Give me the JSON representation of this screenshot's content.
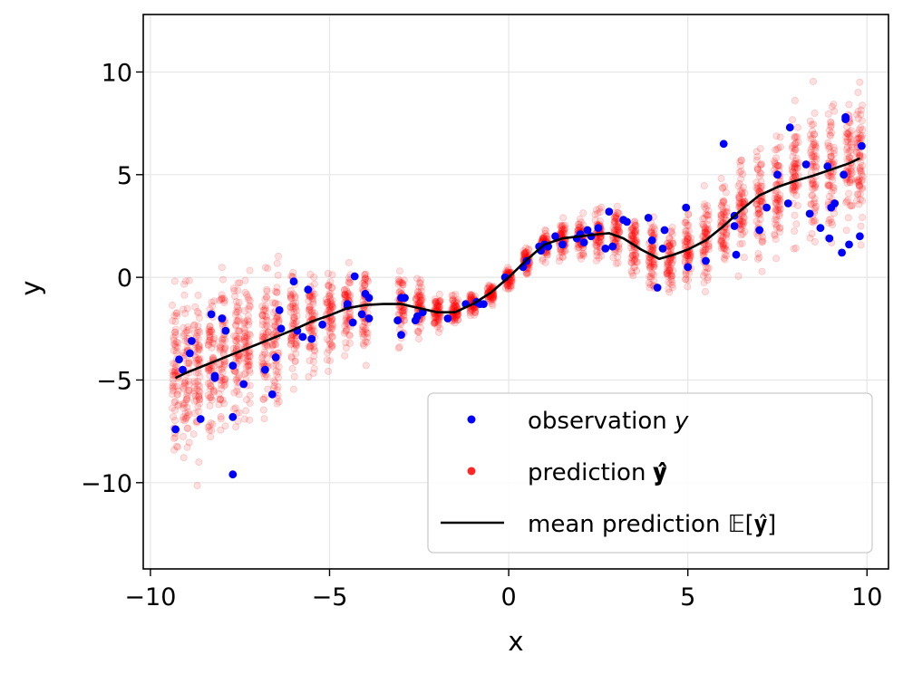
{
  "chart_data": {
    "type": "scatter",
    "title": "",
    "xlabel": "x",
    "ylabel": "y",
    "xlim": [
      -10.2,
      10.6
    ],
    "ylim": [
      -14.2,
      12.8
    ],
    "xticks": [
      -10,
      -5,
      0,
      5,
      10
    ],
    "yticks": [
      -10,
      -5,
      0,
      5,
      10
    ],
    "xtick_labels": [
      "−10",
      "−5",
      "0",
      "5",
      "10"
    ],
    "ytick_labels": [
      "−10",
      "−5",
      "0",
      "5",
      "10"
    ],
    "grid": true,
    "legend_position": "lower-right",
    "colors": {
      "observation": "#0000ff",
      "prediction": "#ff0000",
      "mean": "#000000"
    },
    "series": [
      {
        "name": "observation",
        "label": "observation y",
        "kind": "scatter",
        "points": [
          [
            -9.3,
            -7.4
          ],
          [
            -9.2,
            -4.0
          ],
          [
            -9.1,
            -4.5
          ],
          [
            -8.9,
            -3.7
          ],
          [
            -8.85,
            -3.1
          ],
          [
            -8.6,
            -6.9
          ],
          [
            -8.3,
            -1.8
          ],
          [
            -8.2,
            -4.8
          ],
          [
            -8.2,
            -4.9
          ],
          [
            -8.0,
            -2.0
          ],
          [
            -7.9,
            -2.6
          ],
          [
            -7.7,
            -9.6
          ],
          [
            -7.7,
            -6.8
          ],
          [
            -7.7,
            -4.3
          ],
          [
            -7.4,
            -5.2
          ],
          [
            -6.8,
            -4.5
          ],
          [
            -6.6,
            -5.7
          ],
          [
            -6.5,
            -3.9
          ],
          [
            -6.4,
            -1.6
          ],
          [
            -6.35,
            -2.5
          ],
          [
            -6.0,
            -0.2
          ],
          [
            -5.9,
            -2.6
          ],
          [
            -5.75,
            -2.9
          ],
          [
            -5.6,
            -0.6
          ],
          [
            -5.5,
            -3.0
          ],
          [
            -5.2,
            -2.3
          ],
          [
            -4.5,
            -1.3
          ],
          [
            -4.5,
            -1.4
          ],
          [
            -4.35,
            -2.2
          ],
          [
            -4.3,
            0.05
          ],
          [
            -4.1,
            -1.8
          ],
          [
            -4.0,
            -0.8
          ],
          [
            -3.9,
            -2.0
          ],
          [
            -3.9,
            -1.0
          ],
          [
            -3.1,
            -2.1
          ],
          [
            -3.0,
            -2.8
          ],
          [
            -3.0,
            -1.0
          ],
          [
            -2.9,
            -1.0
          ],
          [
            -2.6,
            -2.1
          ],
          [
            -2.55,
            -1.9
          ],
          [
            -2.4,
            -1.7
          ],
          [
            -1.7,
            -2.0
          ],
          [
            -1.2,
            -1.3
          ],
          [
            -0.9,
            -1.2
          ],
          [
            -0.8,
            -1.3
          ],
          [
            -0.7,
            -1.3
          ],
          [
            -0.1,
            0.0
          ],
          [
            0.4,
            0.5
          ],
          [
            0.5,
            0.8
          ],
          [
            0.85,
            1.5
          ],
          [
            0.9,
            1.3
          ],
          [
            1.0,
            1.6
          ],
          [
            1.1,
            1.5
          ],
          [
            1.3,
            2.0
          ],
          [
            1.5,
            1.6
          ],
          [
            1.9,
            1.9
          ],
          [
            2.0,
            2.1
          ],
          [
            2.1,
            1.7
          ],
          [
            2.2,
            2.3
          ],
          [
            2.3,
            2.0
          ],
          [
            2.5,
            2.4
          ],
          [
            2.7,
            1.4
          ],
          [
            2.8,
            3.2
          ],
          [
            2.9,
            1.5
          ],
          [
            3.2,
            2.8
          ],
          [
            3.3,
            2.7
          ],
          [
            3.9,
            2.9
          ],
          [
            4.0,
            1.8
          ],
          [
            4.15,
            -0.5
          ],
          [
            4.3,
            1.4
          ],
          [
            4.35,
            2.3
          ],
          [
            4.95,
            3.4
          ],
          [
            5.0,
            0.5
          ],
          [
            5.5,
            0.8
          ],
          [
            6.0,
            6.5
          ],
          [
            6.3,
            3.0
          ],
          [
            6.3,
            2.5
          ],
          [
            6.35,
            1.1
          ],
          [
            7.0,
            2.3
          ],
          [
            7.2,
            3.4
          ],
          [
            7.5,
            5.0
          ],
          [
            7.8,
            3.6
          ],
          [
            7.85,
            7.3
          ],
          [
            8.3,
            5.5
          ],
          [
            8.4,
            3.1
          ],
          [
            8.7,
            2.4
          ],
          [
            8.9,
            5.4
          ],
          [
            8.95,
            1.9
          ],
          [
            9.0,
            3.4
          ],
          [
            9.1,
            3.6
          ],
          [
            9.3,
            1.2
          ],
          [
            9.35,
            5.0
          ],
          [
            9.4,
            7.7
          ],
          [
            9.4,
            7.8
          ],
          [
            9.5,
            1.6
          ],
          [
            9.8,
            2.0
          ],
          [
            9.85,
            6.4
          ]
        ]
      },
      {
        "name": "prediction",
        "label": "prediction 𝐲̂",
        "kind": "scatter",
        "bands": [
          [
            -9.3,
            -4.9,
            2.8
          ],
          [
            -9.0,
            -4.6,
            2.8
          ],
          [
            -8.7,
            -4.4,
            2.6
          ],
          [
            -8.3,
            -4.1,
            2.6
          ],
          [
            -8.0,
            -3.9,
            2.6
          ],
          [
            -7.6,
            -3.6,
            2.5
          ],
          [
            -7.3,
            -3.3,
            2.3
          ],
          [
            -6.8,
            -3.0,
            2.1
          ],
          [
            -6.5,
            -2.8,
            2.0
          ],
          [
            -6.0,
            -2.4,
            1.8
          ],
          [
            -5.5,
            -2.1,
            1.7
          ],
          [
            -5.0,
            -1.8,
            1.5
          ],
          [
            -4.5,
            -1.4,
            1.3
          ],
          [
            -4.0,
            -1.3,
            1.3
          ],
          [
            -3.0,
            -1.3,
            1.1
          ],
          [
            -2.5,
            -1.5,
            0.8
          ],
          [
            -2.0,
            -1.7,
            0.6
          ],
          [
            -1.5,
            -1.6,
            0.45
          ],
          [
            -1.0,
            -1.3,
            0.35
          ],
          [
            -0.5,
            -0.8,
            0.3
          ],
          [
            0.0,
            0.0,
            0.35
          ],
          [
            0.5,
            0.8,
            0.4
          ],
          [
            1.0,
            1.6,
            0.5
          ],
          [
            1.5,
            1.9,
            0.6
          ],
          [
            2.0,
            2.0,
            0.6
          ],
          [
            2.5,
            2.1,
            0.75
          ],
          [
            3.0,
            2.1,
            0.9
          ],
          [
            3.5,
            1.6,
            0.9
          ],
          [
            4.0,
            1.1,
            1.0
          ],
          [
            4.5,
            1.0,
            1.1
          ],
          [
            5.0,
            1.3,
            1.2
          ],
          [
            5.5,
            1.8,
            1.3
          ],
          [
            6.0,
            2.7,
            1.5
          ],
          [
            6.5,
            3.4,
            1.6
          ],
          [
            7.0,
            3.9,
            1.7
          ],
          [
            7.5,
            4.4,
            1.8
          ],
          [
            8.0,
            4.7,
            1.9
          ],
          [
            8.5,
            5.0,
            2.0
          ],
          [
            9.0,
            5.3,
            2.1
          ],
          [
            9.5,
            5.6,
            2.1
          ],
          [
            9.8,
            5.8,
            2.2
          ]
        ]
      },
      {
        "name": "mean",
        "label": "mean prediction 𝔼[𝐲̂]",
        "kind": "line",
        "points": [
          [
            -9.3,
            -4.9
          ],
          [
            -9.0,
            -4.65
          ],
          [
            -8.5,
            -4.3
          ],
          [
            -8.0,
            -3.95
          ],
          [
            -7.5,
            -3.6
          ],
          [
            -7.0,
            -3.25
          ],
          [
            -6.5,
            -2.9
          ],
          [
            -6.0,
            -2.55
          ],
          [
            -5.5,
            -2.15
          ],
          [
            -5.0,
            -1.85
          ],
          [
            -4.5,
            -1.5
          ],
          [
            -4.0,
            -1.35
          ],
          [
            -3.5,
            -1.3
          ],
          [
            -3.0,
            -1.3
          ],
          [
            -2.5,
            -1.5
          ],
          [
            -2.0,
            -1.7
          ],
          [
            -1.5,
            -1.7
          ],
          [
            -1.0,
            -1.3
          ],
          [
            -0.5,
            -0.75
          ],
          [
            0.0,
            0.0
          ],
          [
            0.5,
            0.85
          ],
          [
            1.0,
            1.6
          ],
          [
            1.5,
            1.9
          ],
          [
            2.0,
            2.0
          ],
          [
            2.5,
            2.1
          ],
          [
            2.8,
            2.15
          ],
          [
            3.2,
            1.9
          ],
          [
            3.7,
            1.35
          ],
          [
            4.2,
            0.9
          ],
          [
            4.6,
            1.1
          ],
          [
            5.0,
            1.35
          ],
          [
            5.5,
            1.8
          ],
          [
            6.0,
            2.5
          ],
          [
            6.5,
            3.3
          ],
          [
            7.0,
            4.0
          ],
          [
            7.2,
            4.15
          ],
          [
            7.5,
            4.4
          ],
          [
            8.0,
            4.7
          ],
          [
            8.5,
            4.95
          ],
          [
            9.0,
            5.25
          ],
          [
            9.5,
            5.55
          ],
          [
            9.8,
            5.8
          ]
        ]
      }
    ],
    "legend": {
      "entries": [
        {
          "name": "observation",
          "text": "observation ",
          "math": "y"
        },
        {
          "name": "prediction",
          "text": "prediction ",
          "math": "𝐲̂"
        },
        {
          "name": "mean",
          "text": "mean prediction ",
          "math": "𝔼[𝐲̂]"
        }
      ]
    }
  }
}
